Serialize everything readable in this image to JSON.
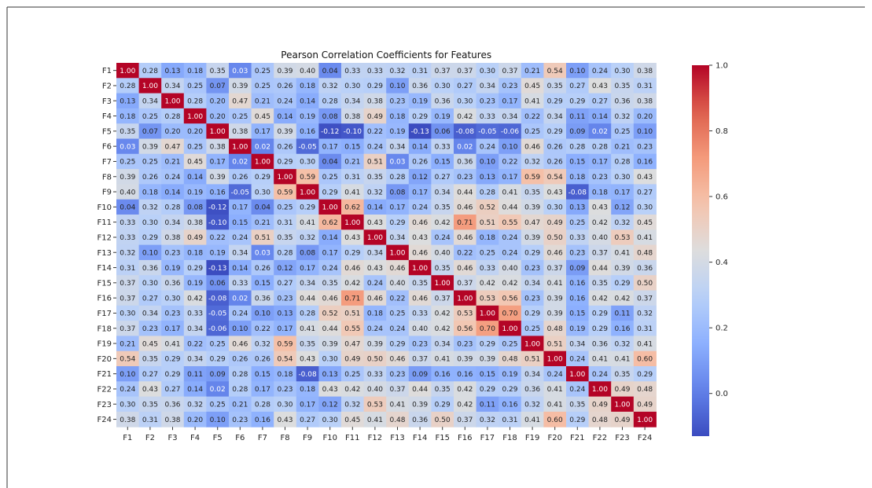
{
  "chart_data": {
    "type": "heatmap",
    "title": "Pearson Correlation Coefficients for Features",
    "xlabel": "",
    "ylabel": "",
    "labels": [
      "F1",
      "F2",
      "F3",
      "F4",
      "F5",
      "F6",
      "F7",
      "F8",
      "F9",
      "F10",
      "F11",
      "F12",
      "F13",
      "F14",
      "F15",
      "F16",
      "F17",
      "F18",
      "F19",
      "F20",
      "F21",
      "F22",
      "F23",
      "F24"
    ],
    "colormap": "coolwarm",
    "vmin": -0.13,
    "vmax": 1.0,
    "colorbar_ticks": [
      "0.0",
      "0.2",
      "0.4",
      "0.6",
      "0.8",
      "1.0"
    ],
    "values": [
      [
        1.0,
        0.28,
        0.13,
        0.18,
        0.35,
        0.03,
        0.25,
        0.39,
        0.4,
        0.04,
        0.33,
        0.33,
        0.32,
        0.31,
        0.37,
        0.37,
        0.3,
        0.37,
        0.21,
        0.54,
        0.1,
        0.24,
        0.3,
        0.38
      ],
      [
        0.28,
        1.0,
        0.34,
        0.25,
        0.07,
        0.39,
        0.25,
        0.26,
        0.18,
        0.32,
        0.3,
        0.29,
        0.1,
        0.36,
        0.3,
        0.27,
        0.34,
        0.23,
        0.45,
        0.35,
        0.27,
        0.43,
        0.35,
        0.31
      ],
      [
        0.13,
        0.34,
        1.0,
        0.28,
        0.2,
        0.47,
        0.21,
        0.24,
        0.14,
        0.28,
        0.34,
        0.38,
        0.23,
        0.19,
        0.36,
        0.3,
        0.23,
        0.17,
        0.41,
        0.29,
        0.29,
        0.27,
        0.36,
        0.38
      ],
      [
        0.18,
        0.25,
        0.28,
        1.0,
        0.2,
        0.25,
        0.45,
        0.14,
        0.19,
        0.08,
        0.38,
        0.49,
        0.18,
        0.29,
        0.19,
        0.42,
        0.33,
        0.34,
        0.22,
        0.34,
        0.11,
        0.14,
        0.32,
        0.2
      ],
      [
        0.35,
        0.07,
        0.2,
        0.2,
        1.0,
        0.38,
        0.17,
        0.39,
        0.16,
        -0.12,
        -0.1,
        0.22,
        0.19,
        -0.13,
        0.06,
        -0.08,
        -0.05,
        -0.06,
        0.25,
        0.29,
        0.09,
        0.02,
        0.25,
        0.1
      ],
      [
        0.03,
        0.39,
        0.47,
        0.25,
        0.38,
        1.0,
        0.02,
        0.26,
        -0.05,
        0.17,
        0.15,
        0.24,
        0.34,
        0.14,
        0.33,
        0.02,
        0.24,
        0.1,
        0.46,
        0.26,
        0.28,
        0.28,
        0.21,
        0.23
      ],
      [
        0.25,
        0.25,
        0.21,
        0.45,
        0.17,
        0.02,
        1.0,
        0.29,
        0.3,
        0.04,
        0.21,
        0.51,
        0.03,
        0.26,
        0.15,
        0.36,
        0.1,
        0.22,
        0.32,
        0.26,
        0.15,
        0.17,
        0.28,
        0.16
      ],
      [
        0.39,
        0.26,
        0.24,
        0.14,
        0.39,
        0.26,
        0.29,
        1.0,
        0.59,
        0.25,
        0.31,
        0.35,
        0.28,
        0.12,
        0.27,
        0.23,
        0.13,
        0.17,
        0.59,
        0.54,
        0.18,
        0.23,
        0.3,
        0.43
      ],
      [
        0.4,
        0.18,
        0.14,
        0.19,
        0.16,
        -0.05,
        0.3,
        0.59,
        1.0,
        0.29,
        0.41,
        0.32,
        0.08,
        0.17,
        0.34,
        0.44,
        0.28,
        0.41,
        0.35,
        0.43,
        -0.08,
        0.18,
        0.17,
        0.27
      ],
      [
        0.04,
        0.32,
        0.28,
        0.08,
        -0.12,
        0.17,
        0.04,
        0.25,
        0.29,
        1.0,
        0.62,
        0.14,
        0.17,
        0.24,
        0.35,
        0.46,
        0.52,
        0.44,
        0.39,
        0.3,
        0.13,
        0.43,
        0.12,
        0.3
      ],
      [
        0.33,
        0.3,
        0.34,
        0.38,
        -0.1,
        0.15,
        0.21,
        0.31,
        0.41,
        0.62,
        1.0,
        0.43,
        0.29,
        0.46,
        0.42,
        0.71,
        0.51,
        0.55,
        0.47,
        0.49,
        0.25,
        0.42,
        0.32,
        0.45
      ],
      [
        0.33,
        0.29,
        0.38,
        0.49,
        0.22,
        0.24,
        0.51,
        0.35,
        0.32,
        0.14,
        0.43,
        1.0,
        0.34,
        0.43,
        0.24,
        0.46,
        0.18,
        0.24,
        0.39,
        0.5,
        0.33,
        0.4,
        0.53,
        0.41
      ],
      [
        0.32,
        0.1,
        0.23,
        0.18,
        0.19,
        0.34,
        0.03,
        0.28,
        0.08,
        0.17,
        0.29,
        0.34,
        1.0,
        0.46,
        0.4,
        0.22,
        0.25,
        0.24,
        0.29,
        0.46,
        0.23,
        0.37,
        0.41,
        0.48
      ],
      [
        0.31,
        0.36,
        0.19,
        0.29,
        -0.13,
        0.14,
        0.26,
        0.12,
        0.17,
        0.24,
        0.46,
        0.43,
        0.46,
        1.0,
        0.35,
        0.46,
        0.33,
        0.4,
        0.23,
        0.37,
        0.09,
        0.44,
        0.39,
        0.36
      ],
      [
        0.37,
        0.3,
        0.36,
        0.19,
        0.06,
        0.33,
        0.15,
        0.27,
        0.34,
        0.35,
        0.42,
        0.24,
        0.4,
        0.35,
        1.0,
        0.37,
        0.42,
        0.42,
        0.34,
        0.41,
        0.16,
        0.35,
        0.29,
        0.5
      ],
      [
        0.37,
        0.27,
        0.3,
        0.42,
        -0.08,
        0.02,
        0.36,
        0.23,
        0.44,
        0.46,
        0.71,
        0.46,
        0.22,
        0.46,
        0.37,
        1.0,
        0.53,
        0.56,
        0.23,
        0.39,
        0.16,
        0.42,
        0.42,
        0.37
      ],
      [
        0.3,
        0.34,
        0.23,
        0.33,
        -0.05,
        0.24,
        0.1,
        0.13,
        0.28,
        0.52,
        0.51,
        0.18,
        0.25,
        0.33,
        0.42,
        0.53,
        1.0,
        0.7,
        0.29,
        0.39,
        0.15,
        0.29,
        0.11,
        0.32
      ],
      [
        0.37,
        0.23,
        0.17,
        0.34,
        -0.06,
        0.1,
        0.22,
        0.17,
        0.41,
        0.44,
        0.55,
        0.24,
        0.24,
        0.4,
        0.42,
        0.56,
        0.7,
        1.0,
        0.25,
        0.48,
        0.19,
        0.29,
        0.16,
        0.31
      ],
      [
        0.21,
        0.45,
        0.41,
        0.22,
        0.25,
        0.46,
        0.32,
        0.59,
        0.35,
        0.39,
        0.47,
        0.39,
        0.29,
        0.23,
        0.34,
        0.23,
        0.29,
        0.25,
        1.0,
        0.51,
        0.34,
        0.36,
        0.32,
        0.41
      ],
      [
        0.54,
        0.35,
        0.29,
        0.34,
        0.29,
        0.26,
        0.26,
        0.54,
        0.43,
        0.3,
        0.49,
        0.5,
        0.46,
        0.37,
        0.41,
        0.39,
        0.39,
        0.48,
        0.51,
        1.0,
        0.24,
        0.41,
        0.41,
        0.6
      ],
      [
        0.1,
        0.27,
        0.29,
        0.11,
        0.09,
        0.28,
        0.15,
        0.18,
        -0.08,
        0.13,
        0.25,
        0.33,
        0.23,
        0.09,
        0.16,
        0.16,
        0.15,
        0.19,
        0.34,
        0.24,
        1.0,
        0.24,
        0.35,
        0.29
      ],
      [
        0.24,
        0.43,
        0.27,
        0.14,
        0.02,
        0.28,
        0.17,
        0.23,
        0.18,
        0.43,
        0.42,
        0.4,
        0.37,
        0.44,
        0.35,
        0.42,
        0.29,
        0.29,
        0.36,
        0.41,
        0.24,
        1.0,
        0.49,
        0.48
      ],
      [
        0.3,
        0.35,
        0.36,
        0.32,
        0.25,
        0.21,
        0.28,
        0.3,
        0.17,
        0.12,
        0.32,
        0.53,
        0.41,
        0.39,
        0.29,
        0.42,
        0.11,
        0.16,
        0.32,
        0.41,
        0.35,
        0.49,
        1.0,
        0.49
      ],
      [
        0.38,
        0.31,
        0.38,
        0.2,
        0.1,
        0.23,
        0.16,
        0.43,
        0.27,
        0.3,
        0.45,
        0.41,
        0.48,
        0.36,
        0.5,
        0.37,
        0.32,
        0.31,
        0.41,
        0.6,
        0.29,
        0.48,
        0.49,
        1.0
      ]
    ]
  }
}
